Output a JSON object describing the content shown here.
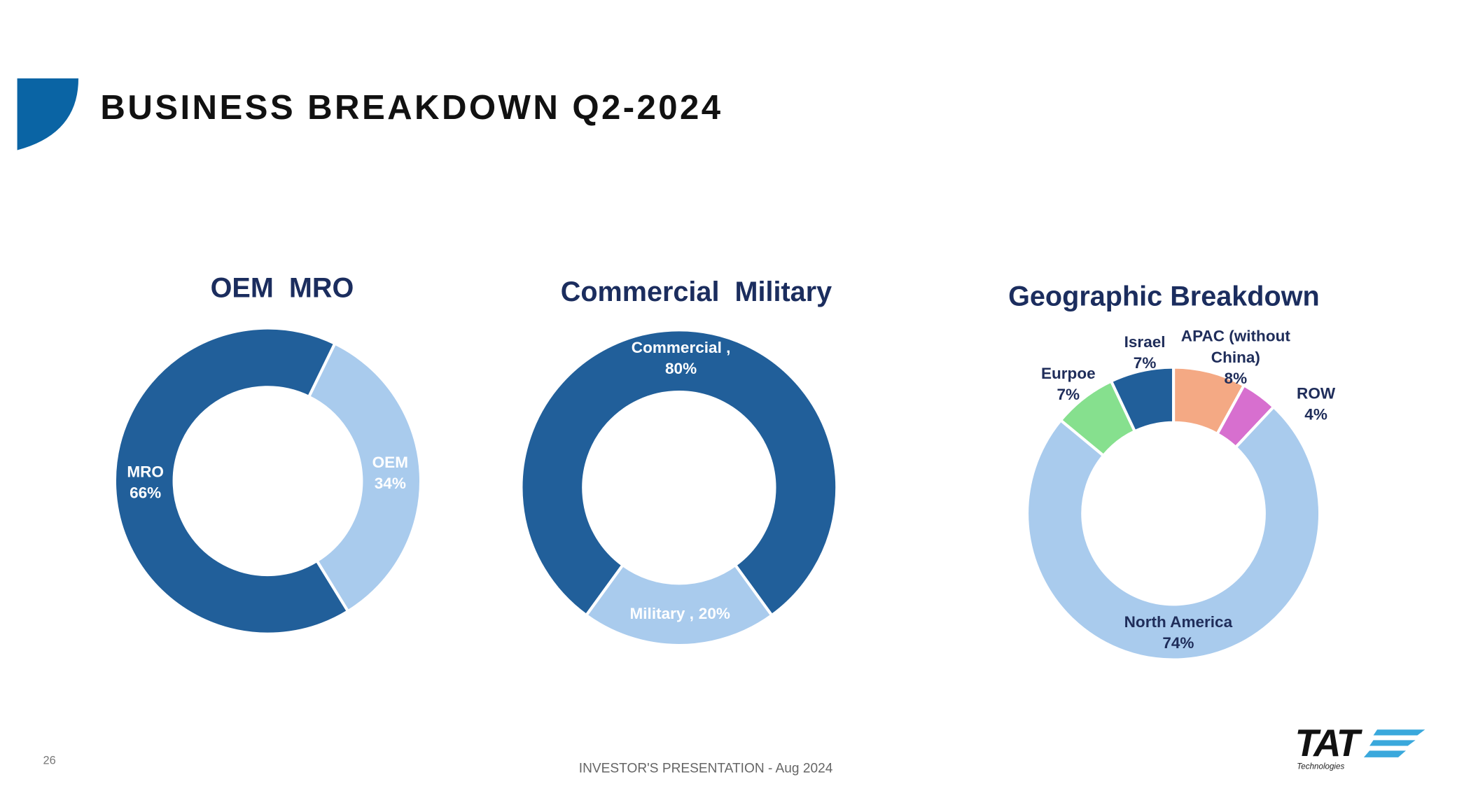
{
  "title": "BUSINESS BREAKDOWN Q2-2024",
  "page_number": "26",
  "footer": "INVESTOR'S PRESENTATION - Aug 2024",
  "logo": {
    "name": "TAT",
    "subtitle": "Technologies"
  },
  "chart_data": [
    {
      "type": "donut",
      "title": "OEM  MRO",
      "categories": [
        "OEM",
        "MRO"
      ],
      "values": [
        34,
        66
      ],
      "value_labels": [
        "34%",
        "66%"
      ],
      "colors": [
        "#a9cbed",
        "#215f9a"
      ]
    },
    {
      "type": "donut",
      "title": "Commercial  Military",
      "categories": [
        "Commercial ,",
        "Military ,"
      ],
      "values": [
        80,
        20
      ],
      "value_labels": [
        "80%",
        "20%"
      ],
      "colors": [
        "#215f9a",
        "#a9cbed"
      ]
    },
    {
      "type": "donut",
      "title": "Geographic Breakdown",
      "categories": [
        "APAC (without China)",
        "ROW",
        "North America",
        "Eurpoe",
        "Israel"
      ],
      "values": [
        8,
        4,
        74,
        7,
        7
      ],
      "value_labels": [
        "8%",
        "4%",
        "74%",
        "7%",
        "7%"
      ],
      "colors": [
        "#f4a984",
        "#d76fcf",
        "#a9cbed",
        "#86e08e",
        "#215f9a"
      ]
    }
  ]
}
